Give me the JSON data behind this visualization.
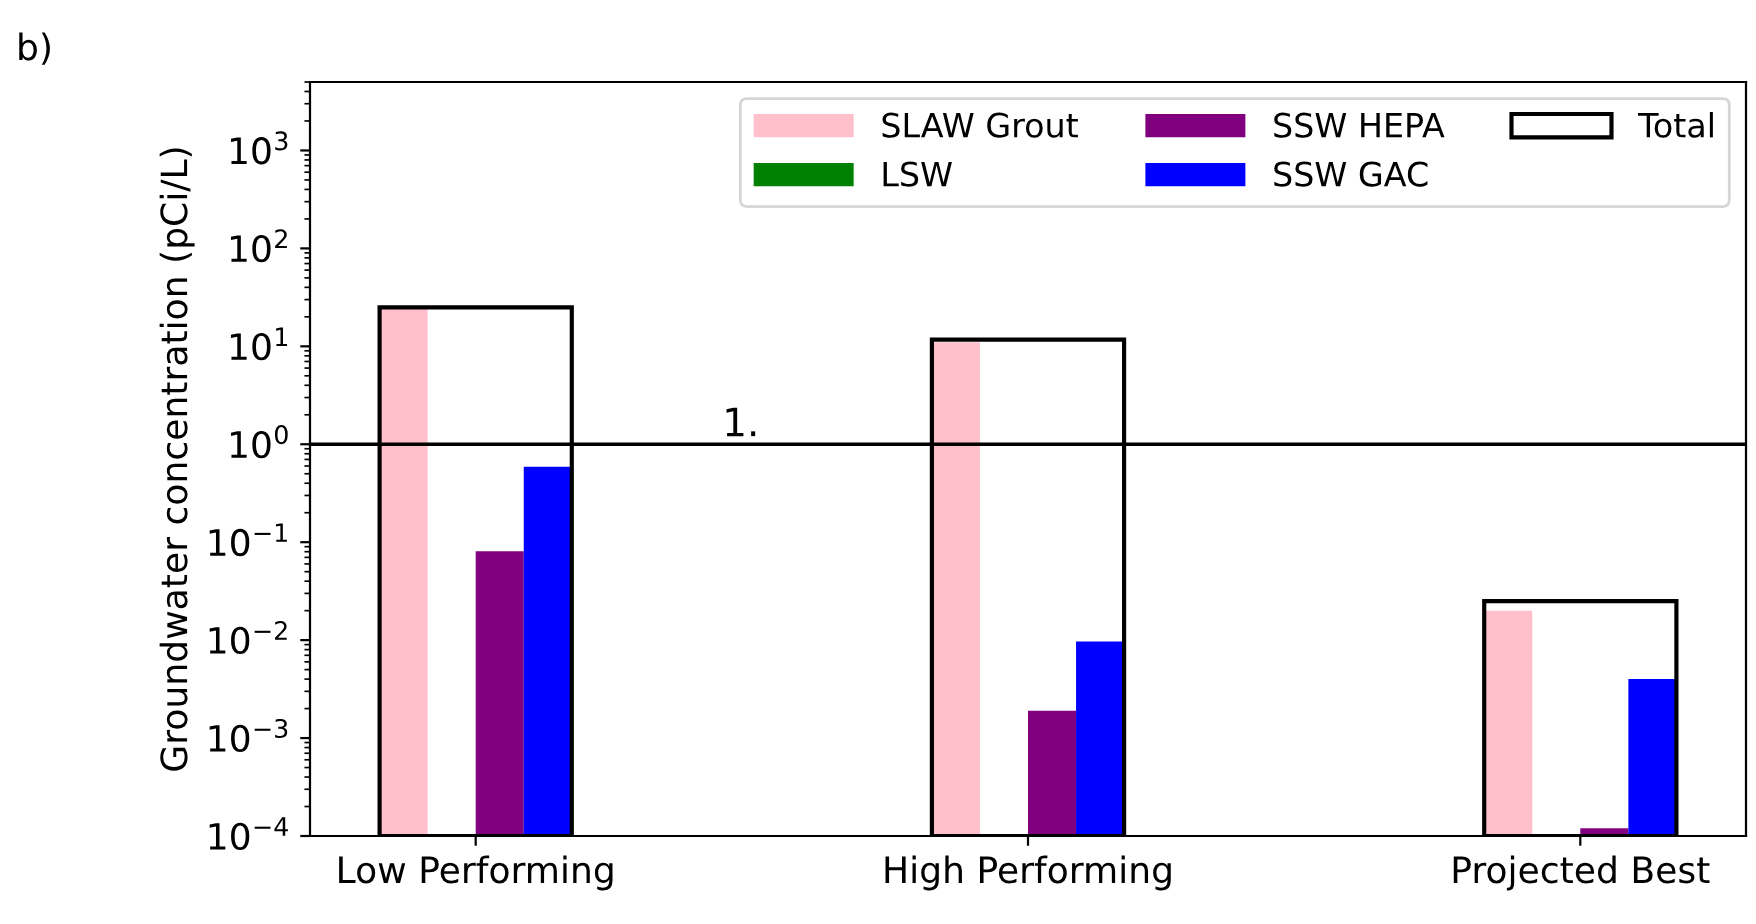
{
  "chart_data": {
    "type": "bar",
    "ylabel": "Groundwater concentration (pCi/L)",
    "log": "y",
    "categories": [
      "Low Performing",
      "High Performing",
      "Projected Best"
    ],
    "series": [
      {
        "name": "SLAW Grout",
        "color": "#ffc0cb",
        "values": [
          25,
          11,
          0.02
        ]
      },
      {
        "name": "LSW",
        "color": "#008000",
        "values": [
          null,
          null,
          null
        ]
      },
      {
        "name": "SSW HEPA",
        "color": "#800080",
        "values": [
          0.081,
          0.0019,
          0.00012
        ]
      },
      {
        "name": "SSW GAC",
        "color": "#0000ff",
        "values": [
          0.59,
          0.0097,
          0.004
        ]
      },
      {
        "name": "Total",
        "color": "#000000",
        "type": "bar",
        "values": [
          25,
          11.7,
          0.025
        ]
      }
    ],
    "ylim": [
      0.0001,
      5000
    ],
    "yticks": [
      {
        "value": 0.0001,
        "label": "10$^{−4}$"
      },
      {
        "value": 0.001,
        "label": "10$^{−3}$"
      },
      {
        "value": 0.01,
        "label": "10$^{−2}$"
      },
      {
        "value": 0.1,
        "label": "10$^{−1}$"
      },
      {
        "value": 1,
        "label": "10$^{0}$"
      },
      {
        "value": 10,
        "label": "10$^{1}$"
      },
      {
        "value": 100,
        "label": "10$^{2}$"
      },
      {
        "value": 1000,
        "label": "10$^{3}$"
      }
    ],
    "ref_lines": [
      {
        "axis": "y",
        "value": 1,
        "label": "1.",
        "color": "#000000"
      }
    ],
    "legend": "top right",
    "grid": false,
    "annotations": [
      "b)"
    ]
  }
}
